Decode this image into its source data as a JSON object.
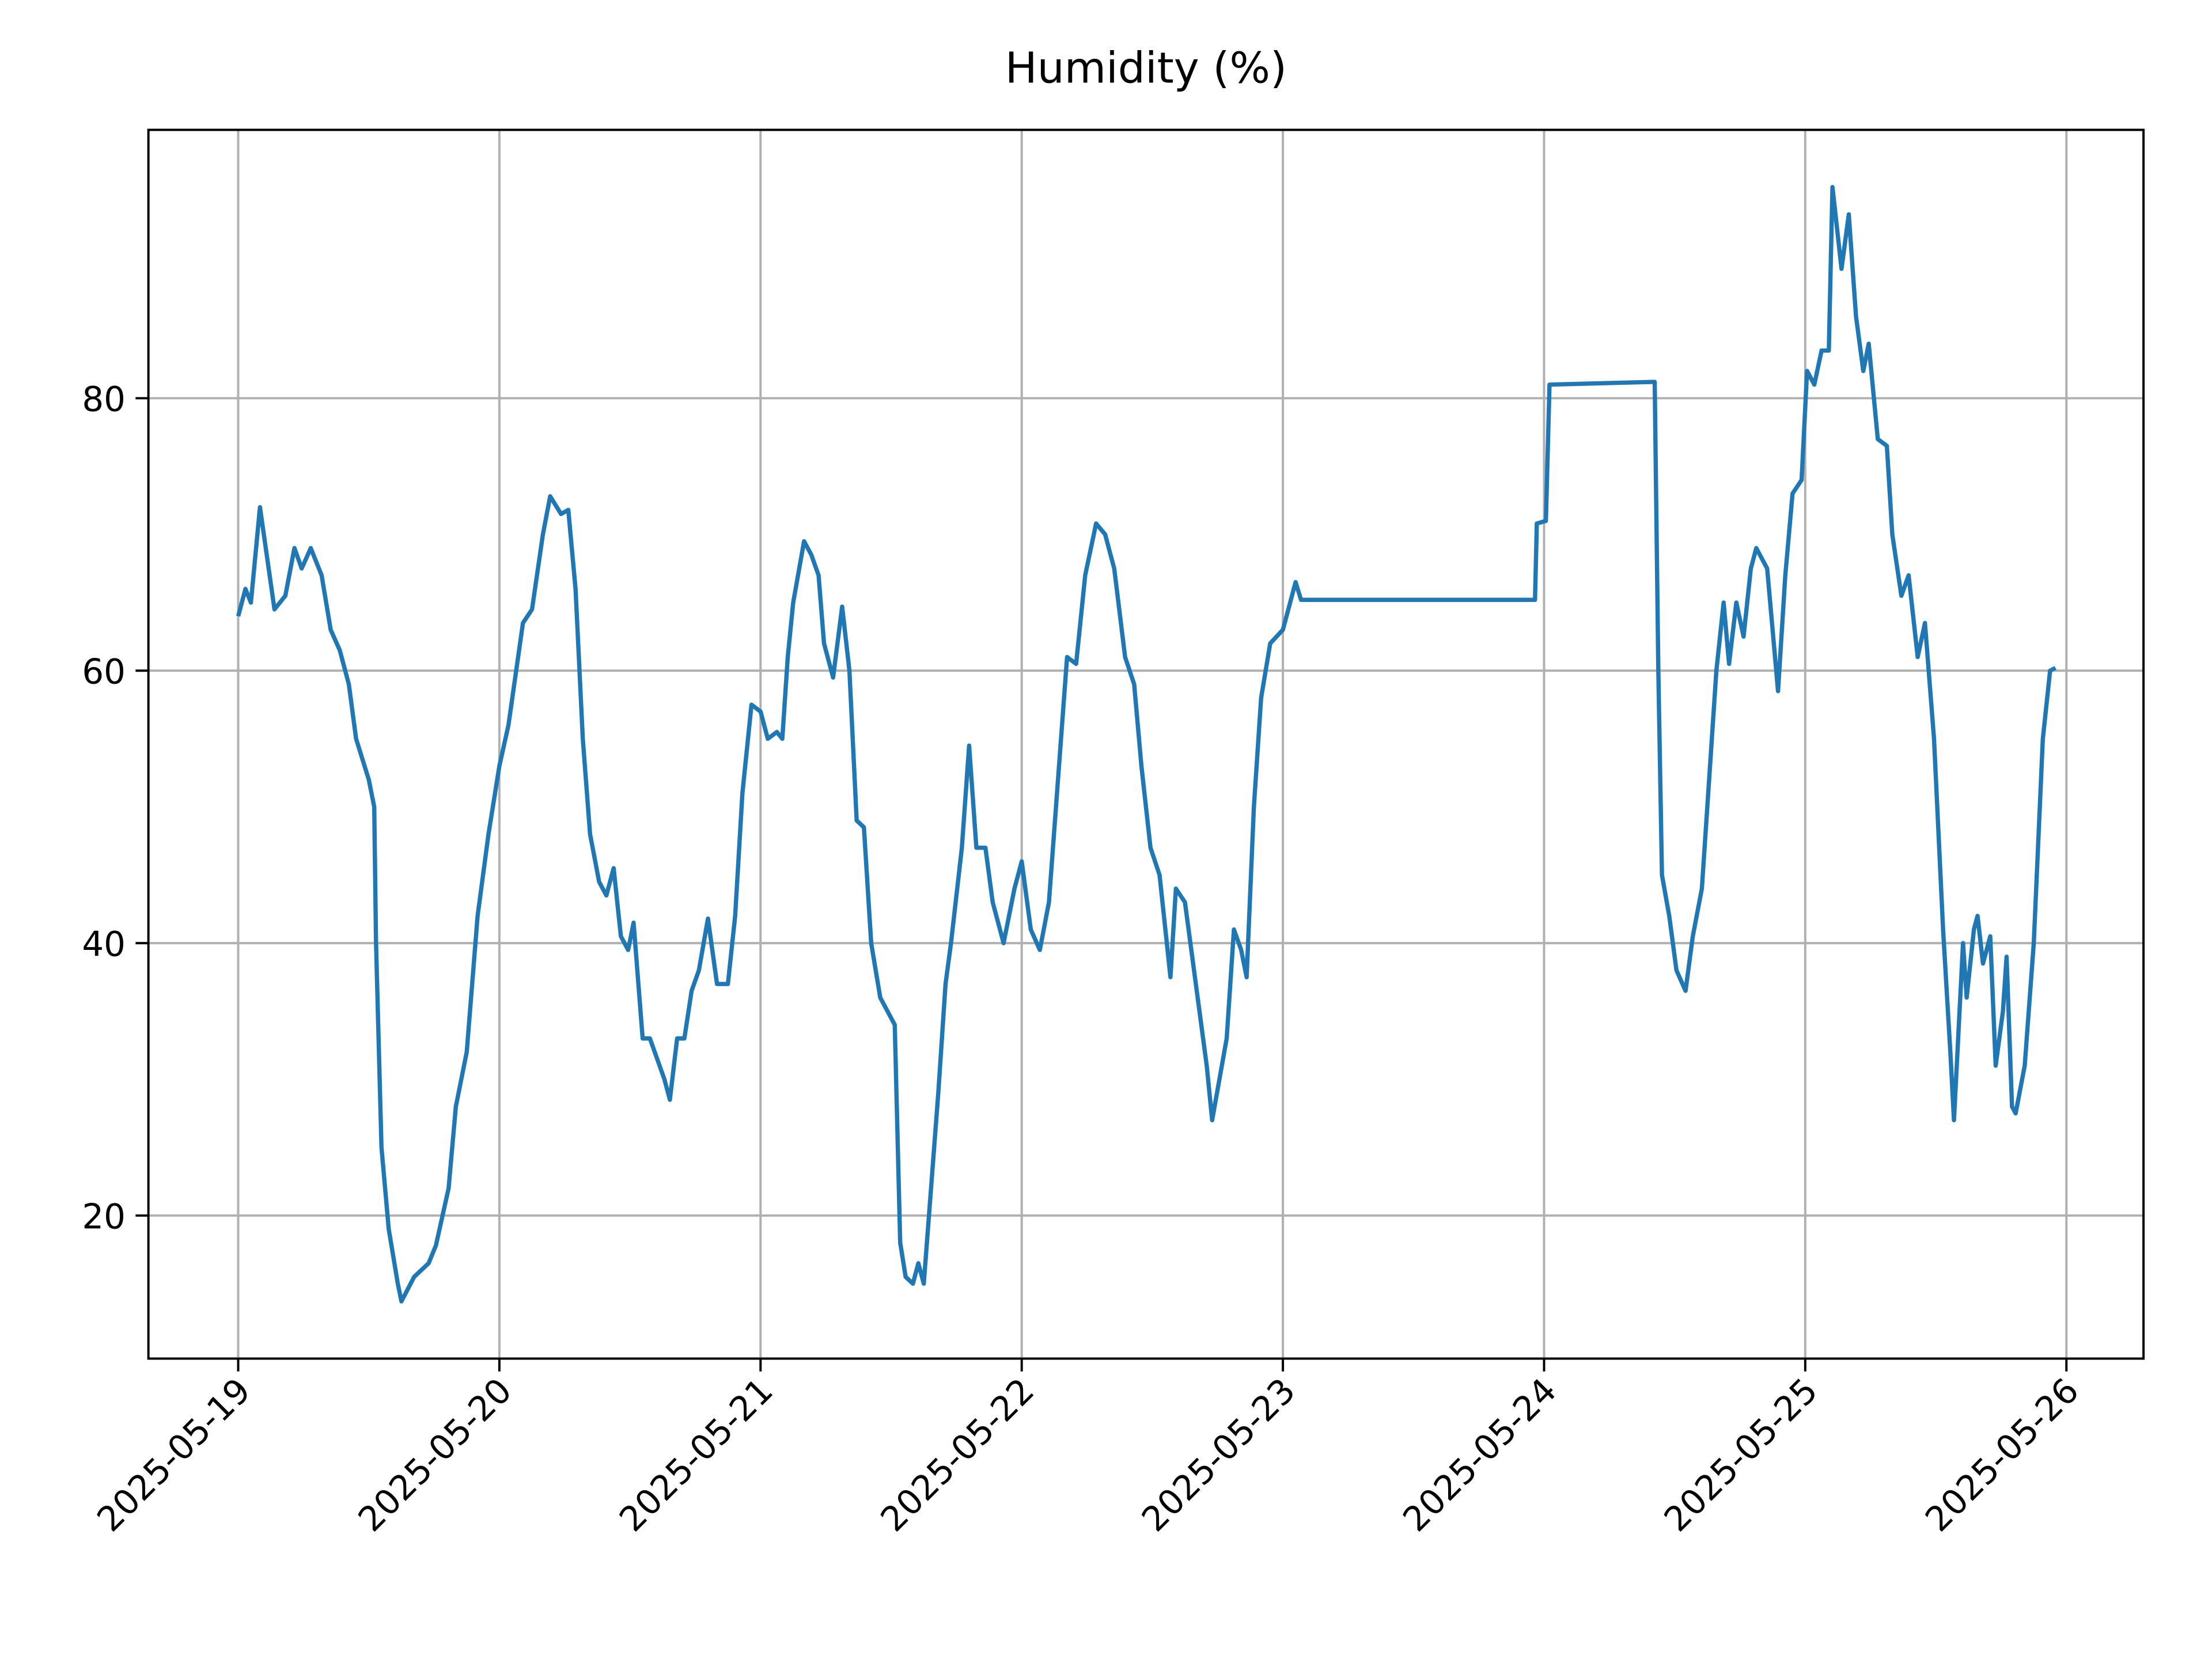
{
  "chart_data": {
    "type": "line",
    "title": "Humidity (%)",
    "x": [
      "2025-05-19 00:00",
      "2025-05-19 00:40",
      "2025-05-19 01:10",
      "2025-05-19 02:00",
      "2025-05-19 03:20",
      "2025-05-19 04:20",
      "2025-05-19 05:10",
      "2025-05-19 05:50",
      "2025-05-19 06:40",
      "2025-05-19 07:40",
      "2025-05-19 08:30",
      "2025-05-19 09:20",
      "2025-05-19 10:10",
      "2025-05-19 10:50",
      "2025-05-19 12:00",
      "2025-05-19 12:30",
      "2025-05-19 12:40",
      "2025-05-19 13:10",
      "2025-05-19 13:50",
      "2025-05-19 14:40",
      "2025-05-19 15:00",
      "2025-05-19 16:10",
      "2025-05-19 17:30",
      "2025-05-19 18:10",
      "2025-05-19 19:20",
      "2025-05-19 20:00",
      "2025-05-19 21:00",
      "2025-05-19 22:00",
      "2025-05-19 23:00",
      "2025-05-20 00:00",
      "2025-05-20 00:50",
      "2025-05-20 02:10",
      "2025-05-20 03:00",
      "2025-05-20 04:00",
      "2025-05-20 04:40",
      "2025-05-20 05:40",
      "2025-05-20 06:20",
      "2025-05-20 07:00",
      "2025-05-20 07:40",
      "2025-05-20 08:20",
      "2025-05-20 09:10",
      "2025-05-20 09:50",
      "2025-05-20 10:30",
      "2025-05-20 11:10",
      "2025-05-20 11:50",
      "2025-05-20 12:20",
      "2025-05-20 13:10",
      "2025-05-20 13:50",
      "2025-05-20 14:30",
      "2025-05-20 15:10",
      "2025-05-20 15:40",
      "2025-05-20 16:20",
      "2025-05-20 17:00",
      "2025-05-20 17:40",
      "2025-05-20 18:20",
      "2025-05-20 19:10",
      "2025-05-20 20:00",
      "2025-05-20 21:00",
      "2025-05-20 21:40",
      "2025-05-20 22:20",
      "2025-05-20 23:10",
      "2025-05-21 00:00",
      "2025-05-21 00:40",
      "2025-05-21 01:30",
      "2025-05-21 02:00",
      "2025-05-21 02:30",
      "2025-05-21 03:00",
      "2025-05-21 04:00",
      "2025-05-21 04:40",
      "2025-05-21 05:20",
      "2025-05-21 05:50",
      "2025-05-21 06:40",
      "2025-05-21 07:30",
      "2025-05-21 08:10",
      "2025-05-21 08:50",
      "2025-05-21 09:30",
      "2025-05-21 10:10",
      "2025-05-21 11:00",
      "2025-05-21 11:40",
      "2025-05-21 12:20",
      "2025-05-21 12:50",
      "2025-05-21 13:20",
      "2025-05-21 14:00",
      "2025-05-21 14:30",
      "2025-05-21 15:00",
      "2025-05-21 15:40",
      "2025-05-21 16:20",
      "2025-05-21 17:00",
      "2025-05-21 17:30",
      "2025-05-21 18:30",
      "2025-05-21 19:10",
      "2025-05-21 19:50",
      "2025-05-21 20:40",
      "2025-05-21 21:20",
      "2025-05-21 22:20",
      "2025-05-21 23:20",
      "2025-05-22 00:00",
      "2025-05-22 00:50",
      "2025-05-22 01:40",
      "2025-05-22 02:30",
      "2025-05-22 03:20",
      "2025-05-22 04:10",
      "2025-05-22 05:00",
      "2025-05-22 05:50",
      "2025-05-22 06:50",
      "2025-05-22 07:40",
      "2025-05-22 08:30",
      "2025-05-22 09:30",
      "2025-05-22 10:20",
      "2025-05-22 11:00",
      "2025-05-22 11:50",
      "2025-05-22 12:40",
      "2025-05-22 13:20",
      "2025-05-22 13:40",
      "2025-05-22 14:10",
      "2025-05-22 15:00",
      "2025-05-22 15:40",
      "2025-05-22 16:20",
      "2025-05-22 17:00",
      "2025-05-22 17:30",
      "2025-05-22 18:10",
      "2025-05-22 18:50",
      "2025-05-22 19:30",
      "2025-05-22 20:10",
      "2025-05-22 20:40",
      "2025-05-22 21:20",
      "2025-05-22 22:00",
      "2025-05-22 22:50",
      "2025-05-23 00:00",
      "2025-05-23 00:40",
      "2025-05-23 01:10",
      "2025-05-23 01:40",
      "2025-05-23 23:10",
      "2025-05-23 23:20",
      "2025-05-24 00:10",
      "2025-05-24 00:30",
      "2025-05-24 10:10",
      "2025-05-24 10:30",
      "2025-05-24 10:50",
      "2025-05-24 11:30",
      "2025-05-24 12:10",
      "2025-05-24 13:00",
      "2025-05-24 13:40",
      "2025-05-24 14:30",
      "2025-05-24 15:00",
      "2025-05-24 15:50",
      "2025-05-24 16:30",
      "2025-05-24 17:00",
      "2025-05-24 17:40",
      "2025-05-24 18:20",
      "2025-05-24 19:00",
      "2025-05-24 19:30",
      "2025-05-24 20:30",
      "2025-05-24 21:00",
      "2025-05-24 21:30",
      "2025-05-24 22:10",
      "2025-05-24 22:50",
      "2025-05-24 23:40",
      "2025-05-25 00:10",
      "2025-05-25 00:50",
      "2025-05-25 01:30",
      "2025-05-25 02:10",
      "2025-05-25 02:30",
      "2025-05-25 03:20",
      "2025-05-25 04:00",
      "2025-05-25 04:40",
      "2025-05-25 05:20",
      "2025-05-25 05:50",
      "2025-05-25 06:40",
      "2025-05-25 07:30",
      "2025-05-25 08:00",
      "2025-05-25 08:50",
      "2025-05-25 09:30",
      "2025-05-25 10:20",
      "2025-05-25 11:00",
      "2025-05-25 11:50",
      "2025-05-25 12:40",
      "2025-05-25 13:20",
      "2025-05-25 13:40",
      "2025-05-25 14:30",
      "2025-05-25 14:50",
      "2025-05-25 15:30",
      "2025-05-25 15:50",
      "2025-05-25 16:20",
      "2025-05-25 17:00",
      "2025-05-25 17:30",
      "2025-05-25 18:10",
      "2025-05-25 18:30",
      "2025-05-25 19:00",
      "2025-05-25 19:20",
      "2025-05-25 20:10",
      "2025-05-25 21:00",
      "2025-05-25 21:50",
      "2025-05-25 22:30",
      "2025-05-25 23:00"
    ],
    "series": [
      {
        "name": "Humidity",
        "color": "#1f77b4",
        "values": [
          64,
          66,
          65,
          72,
          64.5,
          65.5,
          69,
          67.5,
          69,
          67,
          63,
          61.5,
          59,
          55,
          52,
          50,
          40,
          25,
          19,
          15,
          13.7,
          15.5,
          16.5,
          17.8,
          22,
          28,
          32,
          42,
          48,
          53,
          56,
          63.5,
          64.5,
          70,
          72.8,
          71.5,
          71.8,
          66,
          55,
          48,
          44.5,
          43.5,
          45.5,
          40.5,
          39.5,
          41.5,
          33,
          33,
          31.5,
          30,
          28.5,
          33,
          33,
          36.5,
          38,
          41.8,
          37,
          37,
          42,
          51,
          57.5,
          57,
          55,
          55.5,
          55,
          61,
          65,
          69.5,
          68.5,
          67,
          62,
          59.5,
          64.7,
          60,
          49,
          48.5,
          40,
          36,
          35,
          34,
          18,
          15.5,
          15,
          16.5,
          15,
          22,
          29,
          37,
          40,
          47,
          54.5,
          47,
          47,
          43,
          40,
          44,
          46,
          41,
          39.5,
          43,
          52,
          61,
          60.5,
          67,
          70.8,
          70,
          67.5,
          61,
          59,
          53,
          47,
          45,
          40,
          37.5,
          44,
          43,
          39,
          35,
          31,
          27,
          30,
          33,
          41,
          39.5,
          37.5,
          50,
          58,
          62,
          63,
          65,
          66.5,
          65.2,
          65.2,
          70.8,
          71,
          81,
          81.2,
          60,
          45,
          42,
          38,
          36.5,
          40.5,
          44,
          50,
          60,
          65,
          60.5,
          65,
          62.5,
          67.5,
          69,
          67.5,
          63,
          58.5,
          67,
          73,
          74,
          82,
          81,
          83.5,
          83.5,
          95.5,
          89.5,
          93.5,
          86,
          82,
          84,
          77,
          76.5,
          70,
          65.5,
          67,
          61,
          63.5,
          55,
          41,
          32,
          27,
          40,
          36,
          41,
          42,
          38.5,
          40.5,
          31,
          35,
          39,
          28,
          27.5,
          31,
          40,
          55,
          60,
          60.2
        ]
      }
    ],
    "xlim": [
      "2025-05-18 15:45",
      "2025-05-26 07:05"
    ],
    "xticks": [
      "2025-05-19",
      "2025-05-20",
      "2025-05-21",
      "2025-05-22",
      "2025-05-23",
      "2025-05-24",
      "2025-05-25",
      "2025-05-26"
    ],
    "ylim": [
      9.5,
      99.7
    ],
    "yticks": [
      20,
      40,
      60,
      80
    ],
    "grid": true
  }
}
